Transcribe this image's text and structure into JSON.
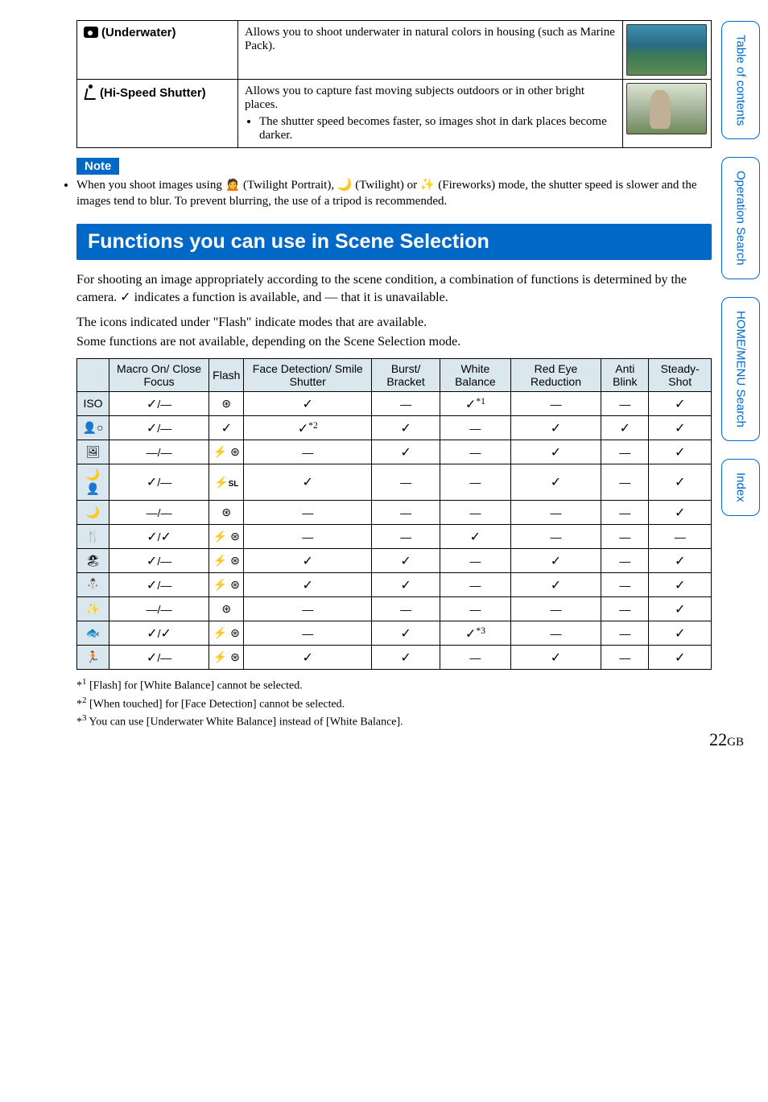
{
  "top_rows": [
    {
      "icon": "fish-icon",
      "label": "(Underwater)",
      "desc": "Allows you to shoot underwater in natural colors in housing (such as Marine Pack).",
      "bullets": [],
      "thumb_class": "water"
    },
    {
      "icon": "runner-icon",
      "label": "(Hi-Speed Shutter)",
      "desc": "Allows you to capture fast moving subjects outdoors or in other bright places.",
      "bullets": [
        "The shutter speed becomes faster, so images shot in dark places become darker."
      ],
      "thumb_class": "sport"
    }
  ],
  "note_label": "Note",
  "note_text": "When you shoot images using 🙍‍ (Twilight Portrait), 🌙 (Twilight) or ✨ (Fireworks) mode, the shutter speed is slower and the images tend to blur. To prevent blurring, the use of a tripod is recommended.",
  "section_title": "Functions you can use in Scene Selection",
  "intro1": "For shooting an image appropriately according to the scene condition, a combination of functions is determined by the camera. ✓ indicates a function is available, and — that it is unavailable.",
  "intro2": "The icons indicated under \"Flash\" indicate modes that are available.",
  "intro3": "Some functions are not available, depending on the Scene Selection mode.",
  "columns": [
    "",
    "Macro On/ Close Focus",
    "Flash",
    "Face Detection/ Smile Shutter",
    "Burst/ Bracket",
    "White Balance",
    "Red Eye Reduction",
    "Anti Blink",
    "Steady-Shot"
  ],
  "rows": [
    {
      "icon": "ISO",
      "cells": [
        "✓/—",
        "🚫",
        "✓",
        "—",
        "✓*1",
        "—",
        "—",
        "✓"
      ]
    },
    {
      "icon": "👤○",
      "cells": [
        "✓/—",
        "✓",
        "✓*2",
        "✓",
        "—",
        "✓",
        "✓",
        "✓"
      ]
    },
    {
      "icon": "🖼",
      "cells": [
        "—/—",
        "⚡ 🚫",
        "—",
        "✓",
        "—",
        "✓",
        "—",
        "✓"
      ]
    },
    {
      "icon": "🌙👤",
      "cells": [
        "✓/—",
        "⚡SL",
        "✓",
        "—",
        "—",
        "✓",
        "—",
        "✓"
      ]
    },
    {
      "icon": "🌙",
      "cells": [
        "—/—",
        "🚫",
        "—",
        "—",
        "—",
        "—",
        "—",
        "✓"
      ]
    },
    {
      "icon": "🍴",
      "cells": [
        "✓/✓",
        "⚡ 🚫",
        "—",
        "—",
        "✓",
        "—",
        "—",
        "—"
      ]
    },
    {
      "icon": "🏖",
      "cells": [
        "✓/—",
        "⚡ 🚫",
        "✓",
        "✓",
        "—",
        "✓",
        "—",
        "✓"
      ]
    },
    {
      "icon": "⛄",
      "cells": [
        "✓/—",
        "⚡ 🚫",
        "✓",
        "✓",
        "—",
        "✓",
        "—",
        "✓"
      ]
    },
    {
      "icon": "✨",
      "cells": [
        "—/—",
        "🚫",
        "—",
        "—",
        "—",
        "—",
        "—",
        "✓"
      ]
    },
    {
      "icon": "🐟",
      "cells": [
        "✓/✓",
        "⚡ 🚫",
        "—",
        "✓",
        "✓*3",
        "—",
        "—",
        "✓"
      ]
    },
    {
      "icon": "🏃",
      "cells": [
        "✓/—",
        "⚡ 🚫",
        "✓",
        "✓",
        "—",
        "✓",
        "—",
        "✓"
      ]
    }
  ],
  "footnotes": [
    "[Flash] for [White Balance] cannot be selected.",
    "[When touched] for [Face Detection] cannot be selected.",
    "You can use [Underwater White Balance] instead of [White Balance]."
  ],
  "tabs": [
    "Table of contents",
    "Operation Search",
    "HOME/MENU Search",
    "Index"
  ],
  "page_number": "22",
  "page_suffix": "GB",
  "colors": {
    "blue": "#0068c6",
    "header_bg": "#dbe7ef"
  }
}
